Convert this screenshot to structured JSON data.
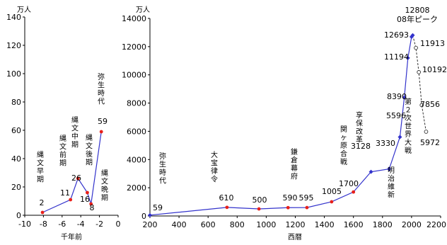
{
  "chart_data": [
    {
      "type": "line",
      "unit": "万人",
      "xlabel": "千年前",
      "xlim": [
        -10,
        0
      ],
      "ylim": [
        0,
        140
      ],
      "xticks": [
        "-10",
        "-8",
        "-6",
        "-4",
        "-2",
        "0"
      ],
      "yticks": [
        "0",
        "20",
        "40",
        "60",
        "80",
        "100",
        "120",
        "140"
      ],
      "points": [
        {
          "x": -8.1,
          "y": 2,
          "period": "縄文早期",
          "value": "2"
        },
        {
          "x": -5.1,
          "y": 11,
          "period": "縄文前期",
          "value": "11"
        },
        {
          "x": -4.3,
          "y": 26,
          "period": "縄文中期",
          "value": "26"
        },
        {
          "x": -3.3,
          "y": 16,
          "period": "縄文後期",
          "value": "16"
        },
        {
          "x": -2.9,
          "y": 8,
          "period": "縄文晩期",
          "value": "8"
        },
        {
          "x": -1.8,
          "y": 59,
          "period": "弥生時代",
          "value": "59"
        }
      ]
    },
    {
      "type": "line",
      "unit": "万人",
      "xlabel": "西暦",
      "xlim": [
        200,
        2200
      ],
      "ylim": [
        0,
        14000
      ],
      "xticks": [
        "200",
        "400",
        "600",
        "800",
        "1000",
        "1200",
        "1400",
        "1600",
        "1800",
        "2000",
        "2200"
      ],
      "yticks": [
        "0",
        "2000",
        "4000",
        "6000",
        "8000",
        "10000",
        "12000",
        "14000"
      ],
      "series": [
        {
          "values": [
            {
              "x": 200,
              "y": 59
            },
            {
              "x": 730,
              "y": 610
            },
            {
              "x": 950,
              "y": 500
            },
            {
              "x": 1150,
              "y": 590
            },
            {
              "x": 1280,
              "y": 595
            },
            {
              "x": 1450,
              "y": 1005
            },
            {
              "x": 1600,
              "y": 1700
            },
            {
              "x": 1721,
              "y": 3128
            },
            {
              "x": 1846,
              "y": 3330
            },
            {
              "x": 1920,
              "y": 5596
            },
            {
              "x": 1950,
              "y": 8390
            },
            {
              "x": 1975,
              "y": 11194
            },
            {
              "x": 2000,
              "y": 12693
            },
            {
              "x": 2008,
              "y": 12808
            }
          ]
        },
        {
          "values": [
            {
              "x": 2008,
              "y": 12808
            },
            {
              "x": 2030,
              "y": 11913
            },
            {
              "x": 2050,
              "y": 10192
            },
            {
              "x": 2070,
              "y": 7856
            },
            {
              "x": 2100,
              "y": 5972
            }
          ]
        }
      ],
      "value_labels": [
        "59",
        "610",
        "500",
        "590",
        "595",
        "1005",
        "1700",
        "3128",
        "3330",
        "5596",
        "8390",
        "11194",
        "12693",
        "12808",
        "11913",
        "10192",
        "7856",
        "5972"
      ],
      "annotations": [
        "弥生時代",
        "大宝律令",
        "鎌倉幕府",
        "関ヶ原合戦",
        "享保改革",
        "明治維新",
        "第２次世界大戦",
        "08年ピーク"
      ]
    }
  ]
}
